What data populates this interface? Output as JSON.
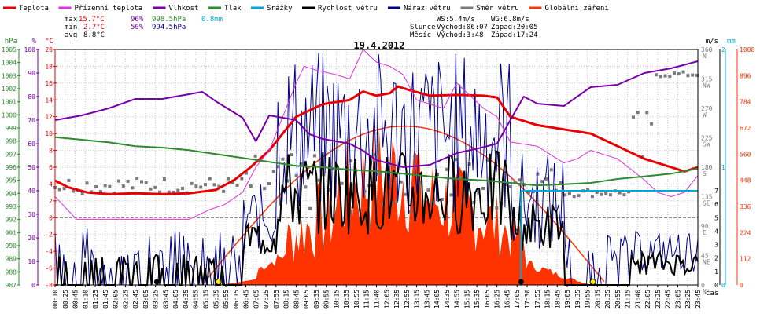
{
  "colors": {
    "teplota": "#e60000",
    "rosny_bod": "#dd33dd",
    "vlhkost": "#7700aa",
    "tlak": "#2e8b2e",
    "srazky": "#00a8d8",
    "rychlost": "#000000",
    "naraz": "#00008b",
    "smer": "#7a7a7a",
    "zareni": "#ff3300",
    "hpa_axis": "#2e8b2e",
    "pct_axis": "#7700aa",
    "temp_axis": "#e60000",
    "ms_axis": "#000000",
    "mm_axis": "#00a8d8",
    "wm2_axis": "#ff3300",
    "grid": "#c8c8c8"
  },
  "legend": [
    {
      "label": "Teplota",
      "color_key": "teplota"
    },
    {
      "label": "Přízemní teplota",
      "color_key": "rosny_bod"
    },
    {
      "label": "Vlhkost",
      "color_key": "vlhkost"
    },
    {
      "label": "Tlak",
      "color_key": "tlak"
    },
    {
      "label": "Srážky",
      "color_key": "srazky"
    },
    {
      "label": "Rychlost větru",
      "color_key": "rychlost"
    },
    {
      "label": "Náraz větru",
      "color_key": "naraz"
    },
    {
      "label": "Směr větru",
      "color_key": "smer"
    },
    {
      "label": "Globální záření",
      "color_key": "zareni"
    }
  ],
  "stats": {
    "max": {
      "label": "max",
      "temp": "15.7°C",
      "hum": "96%",
      "press": "998.5hPa",
      "rain": "0.8mm"
    },
    "min": {
      "label": "min",
      "temp": "2.7°C",
      "hum": "50%",
      "press": "994.5hPa"
    },
    "avg": {
      "label": "avg",
      "temp": "8.8°C"
    }
  },
  "astro": {
    "ws": "WS:5.4m/s",
    "wg": "WG:6.8m/s",
    "sun_label": "Slunce",
    "sunrise": "Východ:06:07",
    "sunset": "Západ:20:05",
    "moon_label": "Měsíc",
    "moonrise": "Východ:3:48",
    "moonset": "Západ:17:24"
  },
  "chart_data": {
    "type": "line",
    "title": "19.4.2012",
    "xlabel": "čas",
    "x_ticks": [
      "00:10",
      "00:25",
      "00:45",
      "01:10",
      "01:25",
      "01:45",
      "02:05",
      "02:25",
      "02:45",
      "03:05",
      "03:25",
      "03:45",
      "04:05",
      "04:35",
      "04:55",
      "05:15",
      "05:35",
      "05:55",
      "06:15",
      "06:45",
      "07:05",
      "07:25",
      "07:55",
      "08:15",
      "08:45",
      "09:05",
      "09:35",
      "09:55",
      "10:15",
      "10:35",
      "10:55",
      "11:15",
      "11:40",
      "12:05",
      "12:35",
      "12:55",
      "13:15",
      "13:45",
      "14:05",
      "14:35",
      "14:55",
      "15:15",
      "15:35",
      "16:05",
      "16:25",
      "16:45",
      "17:05",
      "17:30",
      "17:55",
      "18:15",
      "18:45",
      "19:05",
      "19:35",
      "19:55",
      "20:15",
      "20:35",
      "20:55",
      "21:15",
      "21:40",
      "22:05",
      "22:25",
      "22:45",
      "23:05",
      "23:25",
      "23:45"
    ],
    "axes": {
      "hpa": {
        "label": "hPa",
        "min": 987,
        "max": 1005,
        "ticks": [
          987,
          988,
          989,
          990,
          991,
          992,
          993,
          994,
          995,
          996,
          997,
          998,
          999,
          1000,
          1001,
          1002,
          1003,
          1004,
          1005
        ]
      },
      "pct": {
        "label": "%",
        "min": 0,
        "max": 100,
        "ticks": [
          0,
          10,
          20,
          30,
          40,
          50,
          60,
          70,
          80,
          90,
          100
        ]
      },
      "temp": {
        "label": "°C",
        "min": -8,
        "max": 20,
        "ticks": [
          -8,
          -6,
          -4,
          -2,
          0,
          2,
          4,
          6,
          8,
          10,
          12,
          14,
          16,
          18,
          20
        ]
      },
      "ms": {
        "label": "m/s",
        "min": 0,
        "max": 360,
        "ticks": [
          0,
          45,
          90,
          135,
          180,
          225,
          270,
          315,
          360
        ],
        "dir_labels": [
          "N",
          "NE",
          "E",
          "SE",
          "S",
          "SW",
          "W",
          "NW",
          "N"
        ]
      },
      "mm": {
        "label": "mm",
        "min": 0,
        "max": 2,
        "ticks": [
          0,
          1,
          2
        ]
      },
      "wm2": {
        "label": "W/m²",
        "min": 0,
        "max": 1008,
        "ticks": [
          0,
          112,
          224,
          336,
          448,
          560,
          672,
          784,
          896,
          1008
        ]
      },
      "speed_ticks": [
        0,
        1,
        2,
        3,
        4,
        5,
        6,
        7
      ]
    },
    "series": [
      {
        "name": "Teplota",
        "color_key": "teplota",
        "axis": "temp",
        "width": 3,
        "points": [
          [
            0,
            4.4
          ],
          [
            0.5,
            3.6
          ],
          [
            1.2,
            3.0
          ],
          [
            2,
            2.8
          ],
          [
            3,
            2.9
          ],
          [
            4,
            2.8
          ],
          [
            5,
            2.9
          ],
          [
            6,
            3.3
          ],
          [
            6.7,
            4.5
          ],
          [
            7.3,
            6.0
          ],
          [
            8,
            8.0
          ],
          [
            8.5,
            10.0
          ],
          [
            9,
            12.0
          ],
          [
            10,
            13.5
          ],
          [
            11,
            14.0
          ],
          [
            11.5,
            15.0
          ],
          [
            12,
            14.5
          ],
          [
            12.5,
            14.8
          ],
          [
            12.8,
            15.6
          ],
          [
            13.2,
            15.2
          ],
          [
            14,
            14.5
          ],
          [
            15,
            14.6
          ],
          [
            16,
            14.5
          ],
          [
            16.5,
            14.3
          ],
          [
            17,
            12.0
          ],
          [
            18,
            11.0
          ],
          [
            19,
            10.5
          ],
          [
            20,
            10.0
          ],
          [
            21,
            8.5
          ],
          [
            22,
            7.0
          ],
          [
            23,
            6.0
          ],
          [
            23.5,
            5.5
          ],
          [
            24,
            6.0
          ]
        ]
      },
      {
        "name": "Přízemní teplota",
        "color_key": "rosny_bod",
        "axis": "temp",
        "width": 1,
        "points": [
          [
            0,
            2.5
          ],
          [
            0.8,
            -0.2
          ],
          [
            1.5,
            -0.2
          ],
          [
            3,
            -0.2
          ],
          [
            4,
            -0.2
          ],
          [
            5,
            -0.2
          ],
          [
            5.8,
            1.0
          ],
          [
            6.3,
            1.5
          ],
          [
            7,
            3.0
          ],
          [
            7.5,
            6.0
          ],
          [
            8,
            8.0
          ],
          [
            8.5,
            12.0
          ],
          [
            9,
            16.0
          ],
          [
            9.3,
            18.0
          ],
          [
            9.8,
            17.5
          ],
          [
            10.5,
            17.0
          ],
          [
            11,
            16.5
          ],
          [
            11.5,
            20.0
          ],
          [
            12,
            18.5
          ],
          [
            12.5,
            18.0
          ],
          [
            13,
            17.0
          ],
          [
            13.5,
            14.0
          ],
          [
            14,
            13.5
          ],
          [
            14.5,
            13.0
          ],
          [
            15,
            16.0
          ],
          [
            15.5,
            14.5
          ],
          [
            16,
            13.0
          ],
          [
            16.5,
            12.0
          ],
          [
            17,
            9.0
          ],
          [
            18,
            8.5
          ],
          [
            18.5,
            7.5
          ],
          [
            19,
            6.5
          ],
          [
            19.5,
            7.0
          ],
          [
            20,
            8.0
          ],
          [
            21,
            7.0
          ],
          [
            22,
            4.5
          ],
          [
            22.5,
            3.0
          ],
          [
            23,
            2.5
          ],
          [
            23.5,
            3.0
          ],
          [
            24,
            5.0
          ]
        ]
      },
      {
        "name": "Vlhkost",
        "color_key": "vlhkost",
        "axis": "pct",
        "width": 2,
        "points": [
          [
            0,
            70
          ],
          [
            1,
            72
          ],
          [
            2,
            75
          ],
          [
            3,
            79
          ],
          [
            4,
            79
          ],
          [
            4.5,
            80
          ],
          [
            5,
            81
          ],
          [
            5.5,
            82
          ],
          [
            6,
            78
          ],
          [
            7,
            71
          ],
          [
            7.5,
            61
          ],
          [
            8,
            72
          ],
          [
            9,
            70
          ],
          [
            9.5,
            64
          ],
          [
            10,
            62
          ],
          [
            11,
            60
          ],
          [
            11.5,
            57
          ],
          [
            12,
            53
          ],
          [
            13,
            50
          ],
          [
            14,
            51
          ],
          [
            15,
            56
          ],
          [
            15.8,
            58
          ],
          [
            16.5,
            60
          ],
          [
            17,
            70
          ],
          [
            17.5,
            80
          ],
          [
            18,
            77
          ],
          [
            19,
            76
          ],
          [
            20,
            84
          ],
          [
            21,
            85
          ],
          [
            22,
            90
          ],
          [
            23,
            92
          ],
          [
            24,
            95
          ]
        ]
      },
      {
        "name": "Tlak",
        "color_key": "tlak",
        "axis": "hpa",
        "width": 2,
        "points": [
          [
            0,
            998.3
          ],
          [
            1,
            998.1
          ],
          [
            2,
            997.9
          ],
          [
            3,
            997.6
          ],
          [
            4,
            997.5
          ],
          [
            5,
            997.3
          ],
          [
            6,
            997.0
          ],
          [
            7,
            996.7
          ],
          [
            8,
            996.4
          ],
          [
            9,
            996.1
          ],
          [
            10,
            996.0
          ],
          [
            11,
            995.8
          ],
          [
            12,
            995.7
          ],
          [
            13,
            995.5
          ],
          [
            14,
            995.3
          ],
          [
            15,
            995.1
          ],
          [
            16,
            995.0
          ],
          [
            17,
            994.8
          ],
          [
            18,
            994.6
          ],
          [
            19,
            994.7
          ],
          [
            20,
            994.8
          ],
          [
            21,
            995.1
          ],
          [
            22,
            995.3
          ],
          [
            23,
            995.5
          ],
          [
            24,
            995.9
          ]
        ]
      },
      {
        "name": "Srážky",
        "color_key": "srazky",
        "axis": "mm",
        "width": 2,
        "points": [
          [
            17.4,
            0
          ],
          [
            17.4,
            0.8
          ],
          [
            24,
            0.8
          ]
        ]
      }
    ]
  }
}
